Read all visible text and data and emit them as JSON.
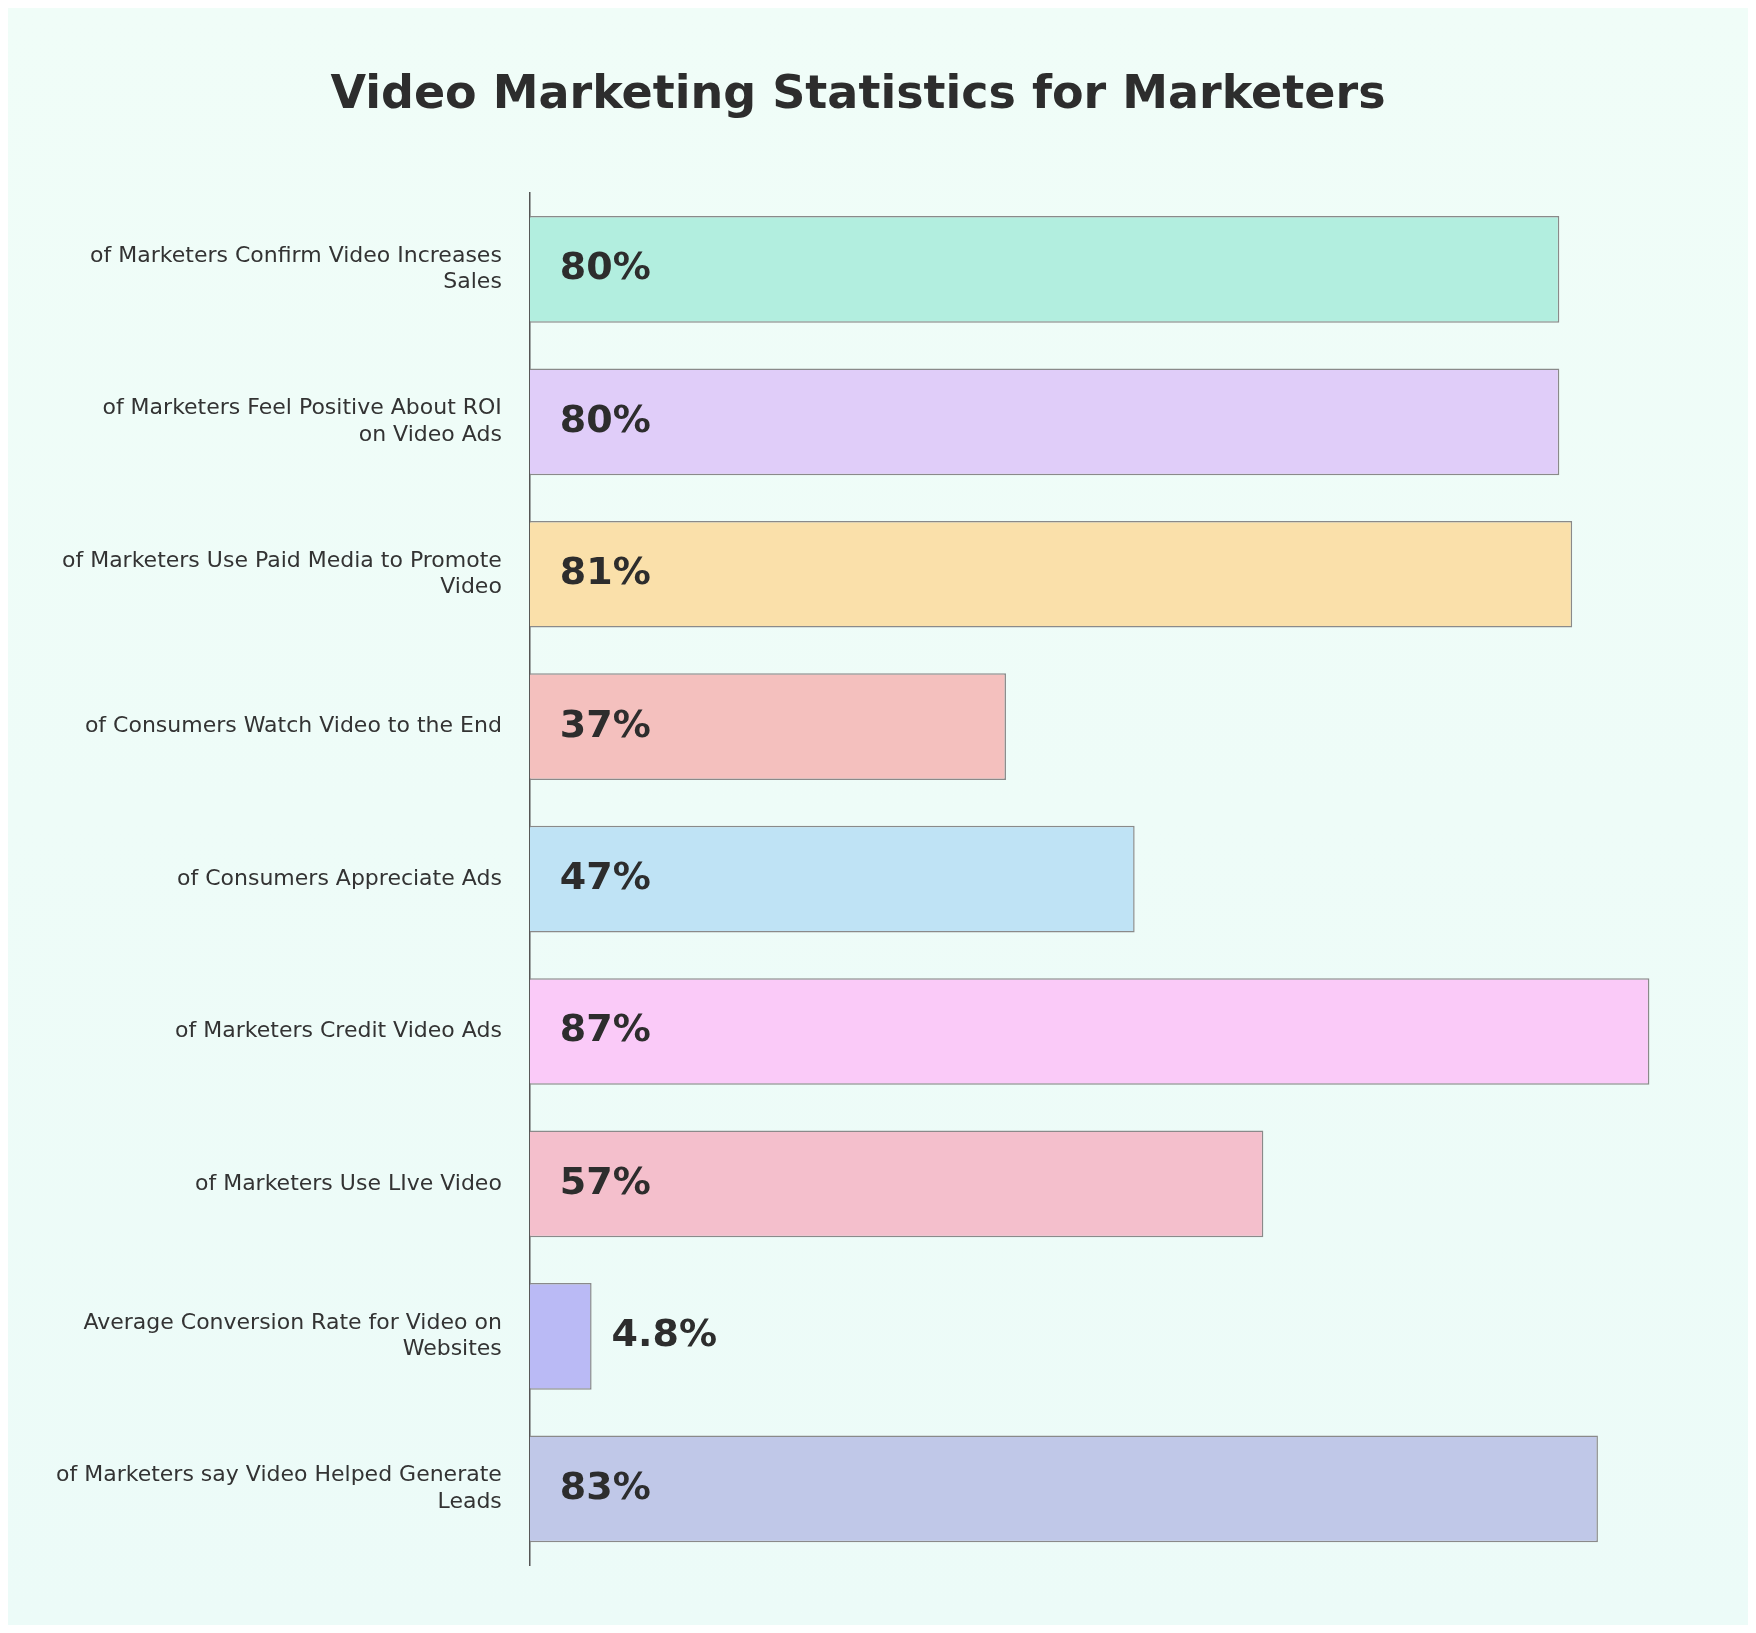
{
  "chart_data": {
    "type": "bar",
    "orientation": "horizontal",
    "title": "Video Marketing Statistics for Marketers",
    "categories": [
      "of Marketers Confirm Video Increases Sales",
      "of Marketers Feel Positive About ROI on Video Ads",
      "of Marketers Use Paid Media to Promote Video",
      "of Consumers Watch Video to the End",
      "of Consumers Appreciate Ads",
      "of Marketers Credit Video Ads",
      "of Marketers Use LIve Video",
      "Average Conversion Rate for Video on Websites",
      "of Marketers say Video Helped Generate Leads"
    ],
    "values": [
      80,
      80,
      81,
      37,
      47,
      87,
      57,
      4.8,
      83
    ],
    "value_labels": [
      "80%",
      "80%",
      "81%",
      "37%",
      "47%",
      "87%",
      "57%",
      "4.8%",
      "83%"
    ],
    "colors": [
      "#b2eedf",
      "#e0cdf9",
      "#fae0aa",
      "#f4c0be",
      "#bfe3f5",
      "#facaf8",
      "#f4bfcc",
      "#babaf5",
      "#c0c8e8"
    ],
    "grid": false,
    "legend": false,
    "tick_labels": "y"
  }
}
